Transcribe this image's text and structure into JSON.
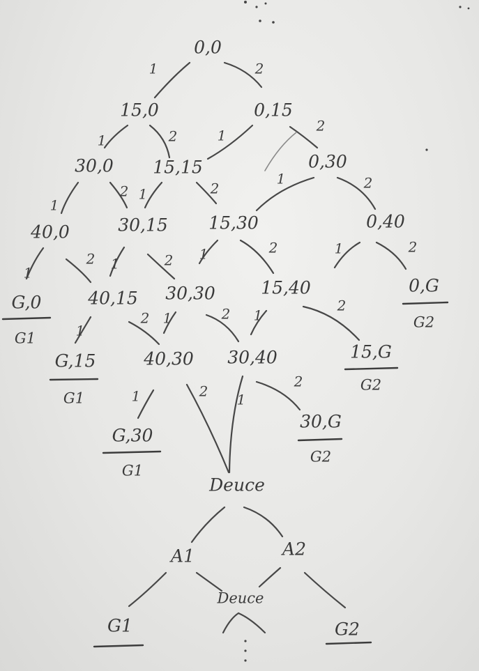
{
  "nodes": {
    "n00": "0,0",
    "n150": "15,0",
    "n015": "0,15",
    "n300": "30,0",
    "n1515": "15,15",
    "n030": "0,30",
    "n400": "40,0",
    "n3015": "30,15",
    "n1530": "15,30",
    "n040": "0,40",
    "nG0": "G,0",
    "n4015": "40,15",
    "n3030": "30,30",
    "n1540": "15,40",
    "n0G": "0,G",
    "nG15": "G,15",
    "n4030": "40,30",
    "n3040": "30,40",
    "n15G": "15,G",
    "nG30": "G,30",
    "n30G": "30,G",
    "deuce": "Deuce",
    "adv1": "A1",
    "adv2": "A2",
    "deuce_repeat": "Deuce",
    "game1": "G1",
    "game2": "G2"
  },
  "winners": {
    "p1": "G1",
    "p2": "G2"
  },
  "edge_labels": {
    "player1": "1",
    "player2": "2"
  }
}
